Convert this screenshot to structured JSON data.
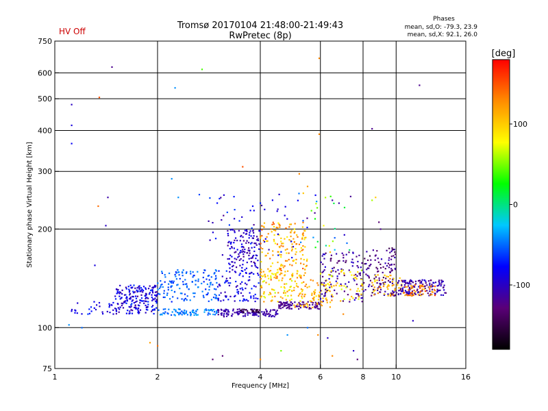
{
  "header": {
    "title_line1": "Tromsø 20170104 21:48:00-21:49:43",
    "title_line2": "RwPretec (8p)",
    "status": "HV Off",
    "phases_title": "Phases",
    "phases_o": "mean, sd,O: -79.3, 23.9",
    "phases_x": "mean, sd,X:  92.1, 26.0"
  },
  "colors": {
    "status": "#cc0000",
    "grid": "#000000",
    "axis": "#000000"
  },
  "chart_data": {
    "type": "scatter",
    "title": "Tromsø 20170104 21:48:00-21:49:43",
    "subtitle": "RwPretec (8p)",
    "xlabel": "Frequency [MHz]",
    "ylabel": "Stationary phase Virtual Height [km]",
    "x_scale": "log",
    "y_scale": "log",
    "xlim": [
      1,
      16
    ],
    "ylim": [
      75,
      750
    ],
    "x_ticks": [
      1,
      2,
      4,
      6,
      8,
      10,
      16
    ],
    "x_gridlines": [
      2,
      4,
      6,
      8,
      10
    ],
    "y_ticks": [
      75,
      100,
      200,
      300,
      400,
      500,
      600,
      750
    ],
    "y_gridlines": [
      100,
      200,
      300,
      400,
      500,
      600
    ],
    "grid": true,
    "colorbar": {
      "label": "[deg]",
      "range": [
        -180,
        180
      ],
      "ticks": [
        100,
        0,
        -100
      ],
      "colormap": [
        "#000000",
        "#5a0078",
        "#0000ff",
        "#00c8ff",
        "#00ff00",
        "#ffff00",
        "#ff8c00",
        "#ff0000"
      ]
    },
    "points": [
      [
        1.12,
        480,
        -100
      ],
      [
        1.12,
        415,
        -90
      ],
      [
        1.12,
        365,
        -80
      ],
      [
        1.47,
        625,
        -120
      ],
      [
        1.35,
        505,
        150
      ],
      [
        1.43,
        250,
        -110
      ],
      [
        1.41,
        205,
        -100
      ],
      [
        1.31,
        155,
        -90
      ],
      [
        1.34,
        235,
        140
      ],
      [
        2.25,
        540,
        -40
      ],
      [
        2.7,
        615,
        40
      ],
      [
        2.2,
        285,
        -40
      ],
      [
        5.95,
        665,
        130
      ],
      [
        5.95,
        390,
        130
      ],
      [
        8.5,
        405,
        -120
      ],
      [
        11.7,
        550,
        -120
      ],
      [
        2.65,
        255,
        -60
      ],
      [
        2.3,
        250,
        -40
      ],
      [
        2.1,
        145,
        -50
      ],
      [
        2.2,
        130,
        -40
      ],
      [
        1.1,
        102,
        -40
      ],
      [
        1.2,
        100,
        -50
      ],
      [
        1.25,
        110,
        -60
      ],
      [
        1.9,
        90,
        120
      ],
      [
        2.0,
        88,
        140
      ],
      [
        2.9,
        80,
        -130
      ],
      [
        3.1,
        82,
        -130
      ],
      [
        4.0,
        80,
        130
      ],
      [
        4.6,
        85,
        50
      ],
      [
        5.9,
        95,
        130
      ],
      [
        6.3,
        93,
        -100
      ],
      [
        6.5,
        82,
        130
      ],
      [
        7.5,
        85,
        -100
      ],
      [
        7.7,
        80,
        -130
      ],
      [
        5.5,
        100,
        -50
      ],
      [
        7.0,
        110,
        130
      ],
      [
        11.2,
        105,
        -100
      ],
      [
        4.8,
        95,
        -40
      ],
      [
        5.5,
        270,
        120
      ],
      [
        5.2,
        295,
        130
      ],
      [
        3.8,
        235,
        -80
      ],
      [
        3.2,
        225,
        -60
      ],
      [
        3.55,
        310,
        150
      ],
      [
        4.0,
        240,
        -70
      ],
      [
        4.5,
        230,
        -100
      ],
      [
        6.5,
        245,
        -110
      ],
      [
        6.8,
        240,
        -110
      ],
      [
        8.5,
        245,
        60
      ],
      [
        8.7,
        250,
        100
      ],
      [
        8.9,
        210,
        -130
      ],
      [
        9.0,
        200,
        -120
      ],
      [
        3.8,
        165,
        -100
      ],
      [
        4.0,
        190,
        130
      ],
      [
        4.3,
        200,
        130
      ]
    ],
    "clusters": [
      {
        "x": [
          1.5,
          2.0
        ],
        "y": [
          110,
          135
        ],
        "n": 200,
        "phase": [
          -120,
          -60
        ]
      },
      {
        "x": [
          1.1,
          1.5
        ],
        "y": [
          110,
          120
        ],
        "n": 30,
        "phase": [
          -100,
          -70
        ]
      },
      {
        "x": [
          2.0,
          3.0
        ],
        "y": [
          120,
          150
        ],
        "n": 140,
        "phase": [
          -70,
          -40
        ]
      },
      {
        "x": [
          2.0,
          3.0
        ],
        "y": [
          109,
          114
        ],
        "n": 80,
        "phase": [
          -60,
          -30
        ]
      },
      {
        "x": [
          3.0,
          4.5
        ],
        "y": [
          108,
          114
        ],
        "n": 120,
        "phase": [
          -120,
          -100
        ]
      },
      {
        "x": [
          4.5,
          6.0
        ],
        "y": [
          114,
          120
        ],
        "n": 90,
        "phase": [
          -130,
          -110
        ]
      },
      {
        "x": [
          3.5,
          4.0
        ],
        "y": [
          111,
          114
        ],
        "n": 25,
        "phase": [
          -170,
          -130
        ]
      },
      {
        "x": [
          3.2,
          4.0
        ],
        "y": [
          150,
          200
        ],
        "n": 130,
        "phase": [
          -120,
          -80
        ]
      },
      {
        "x": [
          3.0,
          4.0
        ],
        "y": [
          120,
          150
        ],
        "n": 90,
        "phase": [
          -110,
          -60
        ]
      },
      {
        "x": [
          4.0,
          5.5
        ],
        "y": [
          140,
          210
        ],
        "n": 180,
        "phase": [
          80,
          150
        ]
      },
      {
        "x": [
          4.0,
          5.0
        ],
        "y": [
          120,
          150
        ],
        "n": 80,
        "phase": [
          60,
          130
        ]
      },
      {
        "x": [
          5.0,
          6.5
        ],
        "y": [
          115,
          140
        ],
        "n": 90,
        "phase": [
          80,
          140
        ]
      },
      {
        "x": [
          6.0,
          8.0
        ],
        "y": [
          120,
          170
        ],
        "n": 110,
        "phase": [
          -140,
          -90
        ]
      },
      {
        "x": [
          6.0,
          8.0
        ],
        "y": [
          120,
          150
        ],
        "n": 50,
        "phase": [
          60,
          120
        ]
      },
      {
        "x": [
          8.0,
          10.0
        ],
        "y": [
          125,
          175
        ],
        "n": 120,
        "phase": [
          -150,
          -100
        ]
      },
      {
        "x": [
          8.5,
          10.5
        ],
        "y": [
          125,
          145
        ],
        "n": 50,
        "phase": [
          80,
          140
        ]
      },
      {
        "x": [
          10.0,
          14.0
        ],
        "y": [
          125,
          140
        ],
        "n": 140,
        "phase": [
          -130,
          -90
        ]
      },
      {
        "x": [
          10.5,
          13.0
        ],
        "y": [
          125,
          135
        ],
        "n": 50,
        "phase": [
          100,
          160
        ]
      },
      {
        "x": [
          2.8,
          5.0
        ],
        "y": [
          160,
          260
        ],
        "n": 45,
        "phase": [
          -120,
          -60
        ]
      },
      {
        "x": [
          5.0,
          7.5
        ],
        "y": [
          170,
          260
        ],
        "n": 35,
        "phase": [
          -130,
          120
        ]
      }
    ]
  }
}
